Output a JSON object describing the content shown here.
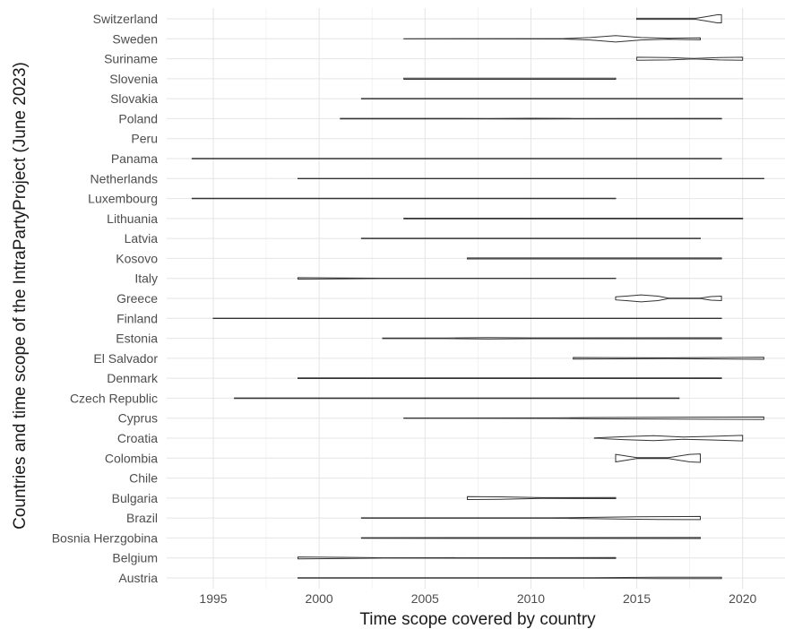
{
  "chart_data": {
    "type": "violin",
    "xlabel": "Time scope covered by country",
    "ylabel": "Countries and time scope of the IntraPartyProject (June 2023)",
    "xlim": [
      1992.8,
      2022.0
    ],
    "xticks": [
      1995,
      2000,
      2005,
      2010,
      2015,
      2020
    ],
    "grid": true,
    "colors": {
      "outline": "#333333",
      "fill": "#ffffff",
      "grid": "#ebebeb",
      "text": "#4d4d4d"
    },
    "series": [
      {
        "name": "Switzerland",
        "x": [
          2015,
          2019
        ],
        "profile": [
          [
            2015,
            0.05
          ],
          [
            2016,
            0.05
          ],
          [
            2017.8,
            0.05
          ],
          [
            2018.3,
            0.22
          ],
          [
            2018.8,
            0.4
          ],
          [
            2019,
            0.4
          ]
        ]
      },
      {
        "name": "Sweden",
        "x": [
          2004,
          2018
        ],
        "profile": [
          [
            2004,
            0.01
          ],
          [
            2011.5,
            0.02
          ],
          [
            2012.8,
            0.12
          ],
          [
            2014,
            0.32
          ],
          [
            2015.2,
            0.12
          ],
          [
            2016.5,
            0.05
          ],
          [
            2018,
            0.1
          ]
        ]
      },
      {
        "name": "Suriname",
        "x": [
          2015,
          2020
        ],
        "profile": [
          [
            2015,
            0.15
          ],
          [
            2016.5,
            0.12
          ],
          [
            2017.7,
            0.02
          ],
          [
            2018.9,
            0.12
          ],
          [
            2020,
            0.15
          ]
        ]
      },
      {
        "name": "Slovenia",
        "x": [
          2004,
          2014
        ],
        "profile": [
          [
            2004,
            0.06
          ],
          [
            2014,
            0.06
          ]
        ]
      },
      {
        "name": "Slovakia",
        "x": [
          2002,
          2020
        ],
        "profile": [
          [
            2002,
            0.02
          ],
          [
            2020,
            0.02
          ]
        ]
      },
      {
        "name": "Poland",
        "x": [
          2001,
          2019
        ],
        "profile": [
          [
            2001,
            0.03
          ],
          [
            2008,
            0.02
          ],
          [
            2010,
            0.04
          ],
          [
            2012,
            0.02
          ],
          [
            2019,
            0.03
          ]
        ]
      },
      {
        "name": "Peru",
        "x": null,
        "profile": []
      },
      {
        "name": "Panama",
        "x": [
          1994,
          2019
        ],
        "profile": [
          [
            1994,
            0.02
          ],
          [
            2019,
            0.02
          ]
        ]
      },
      {
        "name": "Netherlands",
        "x": [
          1999,
          2021
        ],
        "profile": [
          [
            1999,
            0.02
          ],
          [
            2021,
            0.02
          ]
        ]
      },
      {
        "name": "Luxembourg",
        "x": [
          1994,
          2014
        ],
        "profile": [
          [
            1994,
            0.02
          ],
          [
            2014,
            0.02
          ]
        ]
      },
      {
        "name": "Lithuania",
        "x": [
          2004,
          2020
        ],
        "profile": [
          [
            2004,
            0.03
          ],
          [
            2020,
            0.03
          ]
        ]
      },
      {
        "name": "Latvia",
        "x": [
          2002,
          2018
        ],
        "profile": [
          [
            2002,
            0.02
          ],
          [
            2018,
            0.02
          ]
        ]
      },
      {
        "name": "Kosovo",
        "x": [
          2007,
          2019
        ],
        "profile": [
          [
            2007,
            0.05
          ],
          [
            2019,
            0.05
          ]
        ]
      },
      {
        "name": "Italy",
        "x": [
          1999,
          2014
        ],
        "profile": [
          [
            1999,
            0.07
          ],
          [
            2001,
            0.05
          ],
          [
            2003,
            0.02
          ],
          [
            2014,
            0.02
          ]
        ]
      },
      {
        "name": "Greece",
        "x": [
          2014,
          2019
        ],
        "profile": [
          [
            2014,
            0.15
          ],
          [
            2014.5,
            0.22
          ],
          [
            2015.2,
            0.35
          ],
          [
            2016,
            0.22
          ],
          [
            2016.5,
            0.03
          ],
          [
            2018,
            0.03
          ],
          [
            2018.5,
            0.18
          ],
          [
            2019,
            0.22
          ]
        ]
      },
      {
        "name": "Finland",
        "x": [
          1995,
          2019
        ],
        "profile": [
          [
            1995,
            0.02
          ],
          [
            2019,
            0.02
          ]
        ]
      },
      {
        "name": "Estonia",
        "x": [
          2003,
          2019
        ],
        "profile": [
          [
            2003,
            0.03
          ],
          [
            2006,
            0.03
          ],
          [
            2008,
            0.07
          ],
          [
            2010,
            0.04
          ],
          [
            2019,
            0.05
          ]
        ]
      },
      {
        "name": "El Salvador",
        "x": [
          2012,
          2021
        ],
        "profile": [
          [
            2012,
            0.08
          ],
          [
            2016.5,
            0.04
          ],
          [
            2021,
            0.1
          ]
        ]
      },
      {
        "name": "Denmark",
        "x": [
          1999,
          2019
        ],
        "profile": [
          [
            1999,
            0.03
          ],
          [
            2019,
            0.03
          ]
        ]
      },
      {
        "name": "Czech Republic",
        "x": [
          1996,
          2017
        ],
        "profile": [
          [
            1996,
            0.03
          ],
          [
            2017,
            0.03
          ]
        ]
      },
      {
        "name": "Cyprus",
        "x": [
          2004,
          2021
        ],
        "profile": [
          [
            2004,
            0.02
          ],
          [
            2011,
            0.03
          ],
          [
            2013,
            0.06
          ],
          [
            2021,
            0.12
          ]
        ]
      },
      {
        "name": "Croatia",
        "x": [
          2013,
          2020
        ],
        "profile": [
          [
            2013,
            0.02
          ],
          [
            2014.5,
            0.15
          ],
          [
            2015.8,
            0.25
          ],
          [
            2017.2,
            0.12
          ],
          [
            2018.5,
            0.18
          ],
          [
            2020,
            0.28
          ]
        ]
      },
      {
        "name": "Colombia",
        "x": [
          2014,
          2018
        ],
        "profile": [
          [
            2014,
            0.38
          ],
          [
            2015,
            0.05
          ],
          [
            2016.5,
            0.05
          ],
          [
            2017.5,
            0.38
          ],
          [
            2018,
            0.42
          ]
        ]
      },
      {
        "name": "Chile",
        "x": null,
        "profile": []
      },
      {
        "name": "Bulgaria",
        "x": [
          2007,
          2014
        ],
        "profile": [
          [
            2007,
            0.15
          ],
          [
            2008.5,
            0.12
          ],
          [
            2010.5,
            0.04
          ],
          [
            2014,
            0.06
          ]
        ]
      },
      {
        "name": "Brazil",
        "x": [
          2002,
          2018
        ],
        "profile": [
          [
            2002,
            0.02
          ],
          [
            2011,
            0.02
          ],
          [
            2013,
            0.07
          ],
          [
            2015,
            0.12
          ],
          [
            2016,
            0.14
          ],
          [
            2018,
            0.16
          ]
        ]
      },
      {
        "name": "Bosnia Herzgobina",
        "x": [
          2002,
          2018
        ],
        "profile": [
          [
            2002,
            0.03
          ],
          [
            2018,
            0.05
          ]
        ]
      },
      {
        "name": "Belgium",
        "x": [
          1999,
          2014
        ],
        "profile": [
          [
            1999,
            0.1
          ],
          [
            2001,
            0.06
          ],
          [
            2003,
            0.02
          ],
          [
            2014,
            0.04
          ]
        ]
      },
      {
        "name": "Austria",
        "x": [
          1999,
          2019
        ],
        "profile": [
          [
            1999,
            0.03
          ],
          [
            2013,
            0.03
          ],
          [
            2016,
            0.06
          ],
          [
            2019,
            0.06
          ]
        ]
      }
    ]
  }
}
